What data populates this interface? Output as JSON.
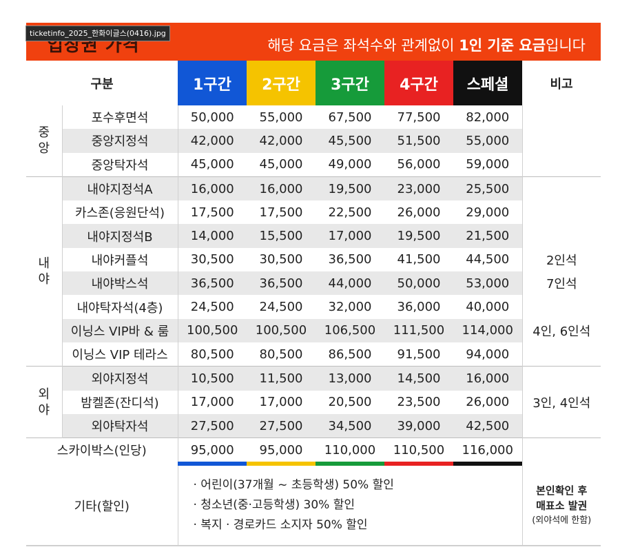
{
  "file_tag": "ticketinfo_2025_한화이글스(0416).jpg",
  "banner": {
    "title": "입장권 가격",
    "note_prefix": "해당 요금은 좌석수와 관계없이 ",
    "note_bold": "1인 기준 요금",
    "note_suffix": "입니다"
  },
  "header": {
    "category": "구분",
    "zones": [
      "1구간",
      "2구간",
      "3구간",
      "4구간",
      "스페셜"
    ],
    "remark": "비고"
  },
  "groups": {
    "central": [
      "중",
      "앙"
    ],
    "infield": [
      "내",
      "야"
    ],
    "outfield": [
      "외",
      "야"
    ]
  },
  "rows": [
    {
      "name": "포수후면석",
      "prices": [
        "50,000",
        "55,000",
        "67,500",
        "77,500",
        "82,000"
      ],
      "note": ""
    },
    {
      "name": "중앙지정석",
      "prices": [
        "42,000",
        "42,000",
        "45,500",
        "51,500",
        "55,000"
      ],
      "note": ""
    },
    {
      "name": "중앙탁자석",
      "prices": [
        "45,000",
        "45,000",
        "49,000",
        "56,000",
        "59,000"
      ],
      "note": ""
    },
    {
      "name": "내야지정석A",
      "prices": [
        "16,000",
        "16,000",
        "19,500",
        "23,000",
        "25,500"
      ],
      "note": ""
    },
    {
      "name": "카스존(응원단석)",
      "prices": [
        "17,500",
        "17,500",
        "22,500",
        "26,000",
        "29,000"
      ],
      "note": ""
    },
    {
      "name": "내야지정석B",
      "prices": [
        "14,000",
        "15,500",
        "17,000",
        "19,500",
        "21,500"
      ],
      "note": ""
    },
    {
      "name": "내야커플석",
      "prices": [
        "30,500",
        "30,500",
        "36,500",
        "41,500",
        "44,500"
      ],
      "note": "2인석"
    },
    {
      "name": "내야박스석",
      "prices": [
        "36,500",
        "36,500",
        "44,000",
        "50,000",
        "53,000"
      ],
      "note": "7인석"
    },
    {
      "name": "내야탁자석(4층)",
      "prices": [
        "24,500",
        "24,500",
        "32,000",
        "36,000",
        "40,000"
      ],
      "note": ""
    },
    {
      "name": "이닝스 VIP바 & 룸",
      "prices": [
        "100,500",
        "100,500",
        "106,500",
        "111,500",
        "114,000"
      ],
      "note": "4인, 6인석"
    },
    {
      "name": "이닝스 VIP 테라스",
      "prices": [
        "80,500",
        "80,500",
        "86,500",
        "91,500",
        "94,000"
      ],
      "note": ""
    },
    {
      "name": "외야지정석",
      "prices": [
        "10,500",
        "11,500",
        "13,000",
        "14,500",
        "16,000"
      ],
      "note": ""
    },
    {
      "name": "밤켈존(잔디석)",
      "prices": [
        "17,000",
        "17,000",
        "20,500",
        "23,500",
        "26,000"
      ],
      "note": "3인, 4인석"
    },
    {
      "name": "외야탁자석",
      "prices": [
        "27,500",
        "27,500",
        "34,500",
        "39,000",
        "42,500"
      ],
      "note": ""
    },
    {
      "name": "스카이박스(인당)",
      "prices": [
        "95,000",
        "95,000",
        "110,000",
        "110,500",
        "116,000"
      ],
      "note": ""
    }
  ],
  "other": {
    "label": "기타(할인)",
    "discounts": [
      "· 어린이(37개월 ~ 초등학생) 50% 할인",
      "· 청소년(중·고등학생) 30% 할인",
      "· 복지 · 경로카드 소지자 50% 할인"
    ],
    "note_line1": "본인확인 후",
    "note_line2": "매표소 발권",
    "note_line3": "(외야석에 한함)"
  },
  "colors": {
    "banner": "#f0410f",
    "zone1": "#1157d6",
    "zone2": "#f5c300",
    "zone3": "#169b3a",
    "zone4": "#e82222",
    "zone5": "#111111",
    "shade": "#e8e8e8"
  }
}
